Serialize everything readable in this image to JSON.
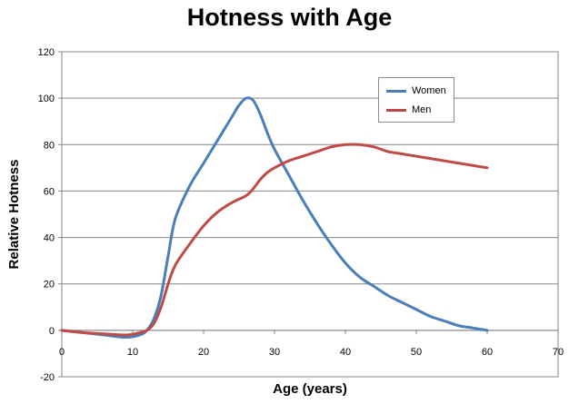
{
  "chart_data": {
    "type": "line",
    "title": "Hotness with Age",
    "xlabel": "Age (years)",
    "ylabel": "Relative Hotness",
    "xlim": [
      0,
      70
    ],
    "ylim": [
      -20,
      120
    ],
    "x_ticks": [
      "0",
      "10",
      "20",
      "30",
      "40",
      "50",
      "60",
      "70"
    ],
    "y_ticks": [
      "-20",
      "0",
      "20",
      "40",
      "60",
      "80",
      "100",
      "120"
    ],
    "grid": true,
    "legend_position": "top-right",
    "series": [
      {
        "name": "Women",
        "color": "#4a7ebb",
        "points": [
          [
            0,
            0
          ],
          [
            3,
            -1
          ],
          [
            6,
            -2
          ],
          [
            9,
            -3
          ],
          [
            11,
            -2
          ],
          [
            12,
            0
          ],
          [
            13,
            5
          ],
          [
            14,
            15
          ],
          [
            15,
            32
          ],
          [
            16,
            48
          ],
          [
            18,
            62
          ],
          [
            20,
            72
          ],
          [
            22,
            82
          ],
          [
            24,
            92
          ],
          [
            25,
            97
          ],
          [
            26,
            100
          ],
          [
            27,
            99
          ],
          [
            28,
            93
          ],
          [
            29,
            85
          ],
          [
            30,
            78
          ],
          [
            32,
            67
          ],
          [
            34,
            56
          ],
          [
            36,
            46
          ],
          [
            38,
            37
          ],
          [
            40,
            29
          ],
          [
            42,
            23
          ],
          [
            44,
            19
          ],
          [
            46,
            15
          ],
          [
            48,
            12
          ],
          [
            50,
            9
          ],
          [
            52,
            6
          ],
          [
            54,
            4
          ],
          [
            56,
            2
          ],
          [
            58,
            1
          ],
          [
            60,
            0
          ]
        ]
      },
      {
        "name": "Men",
        "color": "#be4b48",
        "points": [
          [
            0,
            0
          ],
          [
            3,
            -1
          ],
          [
            6,
            -1.5
          ],
          [
            9,
            -2
          ],
          [
            11,
            -1
          ],
          [
            12,
            0
          ],
          [
            13,
            3
          ],
          [
            14,
            10
          ],
          [
            15,
            20
          ],
          [
            16,
            28
          ],
          [
            18,
            37
          ],
          [
            20,
            45
          ],
          [
            22,
            51
          ],
          [
            24,
            55
          ],
          [
            26,
            58
          ],
          [
            27,
            61
          ],
          [
            28,
            65
          ],
          [
            29,
            68
          ],
          [
            30,
            70
          ],
          [
            32,
            73
          ],
          [
            34,
            75
          ],
          [
            36,
            77
          ],
          [
            38,
            79
          ],
          [
            40,
            80
          ],
          [
            42,
            80
          ],
          [
            44,
            79
          ],
          [
            46,
            77
          ],
          [
            48,
            76
          ],
          [
            50,
            75
          ],
          [
            52,
            74
          ],
          [
            54,
            73
          ],
          [
            56,
            72
          ],
          [
            58,
            71
          ],
          [
            60,
            70
          ]
        ]
      }
    ]
  }
}
